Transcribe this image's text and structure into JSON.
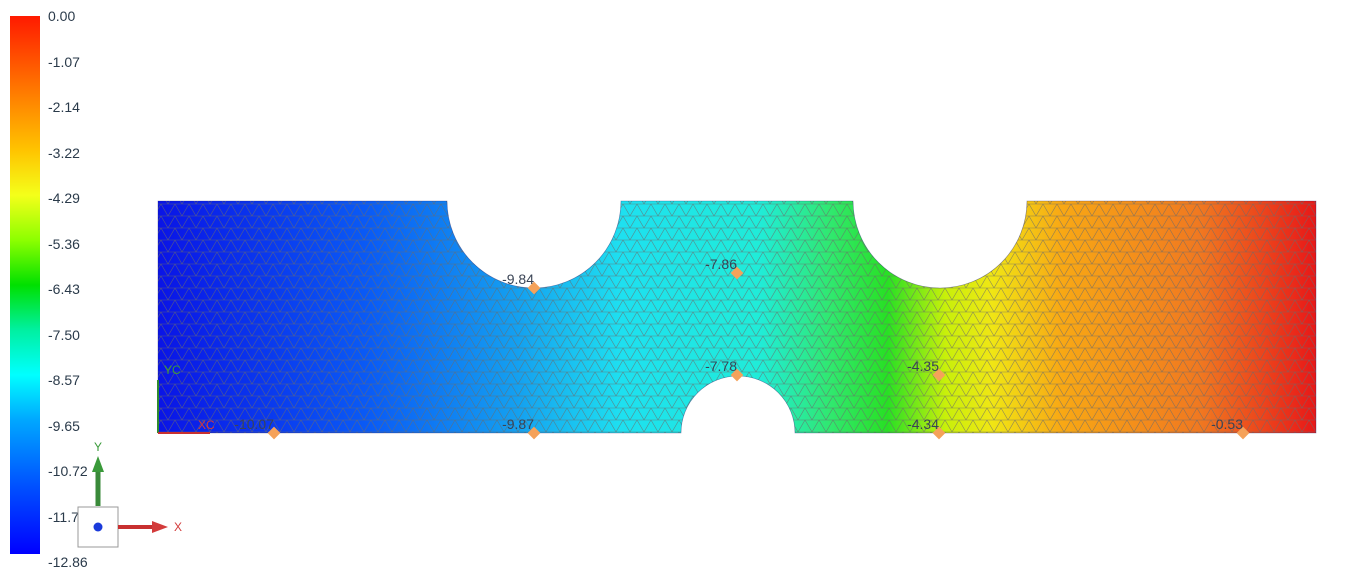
{
  "legend": {
    "labels": [
      "0.00",
      "-1.07",
      "-2.14",
      "-3.22",
      "-4.29",
      "-5.36",
      "-6.43",
      "-7.50",
      "-8.57",
      "-9.65",
      "-10.72",
      "-11.79",
      "-12.86"
    ],
    "min": -12.86,
    "max": 0.0
  },
  "probes": [
    {
      "label": "-10.07",
      "value": -10.07
    },
    {
      "label": "-9.84",
      "value": -9.84
    },
    {
      "label": "-9.87",
      "value": -9.87
    },
    {
      "label": "-7.86",
      "value": -7.86
    },
    {
      "label": "-7.78",
      "value": -7.78
    },
    {
      "label": "-4.35",
      "value": -4.35
    },
    {
      "label": "-4.34",
      "value": -4.34
    },
    {
      "label": "-0.53",
      "value": -0.53
    }
  ],
  "triad": {
    "x_label": "X",
    "y_label": "Y"
  },
  "origin_triad": {
    "x_label": "XC",
    "y_label": "YC"
  },
  "colors": {
    "mesh_line": "#6a6a6a",
    "probe_marker": "#f5a25a",
    "triad_x": "#d33b3b",
    "triad_y": "#3a9a3a",
    "triad_z": "#1a3adb"
  }
}
